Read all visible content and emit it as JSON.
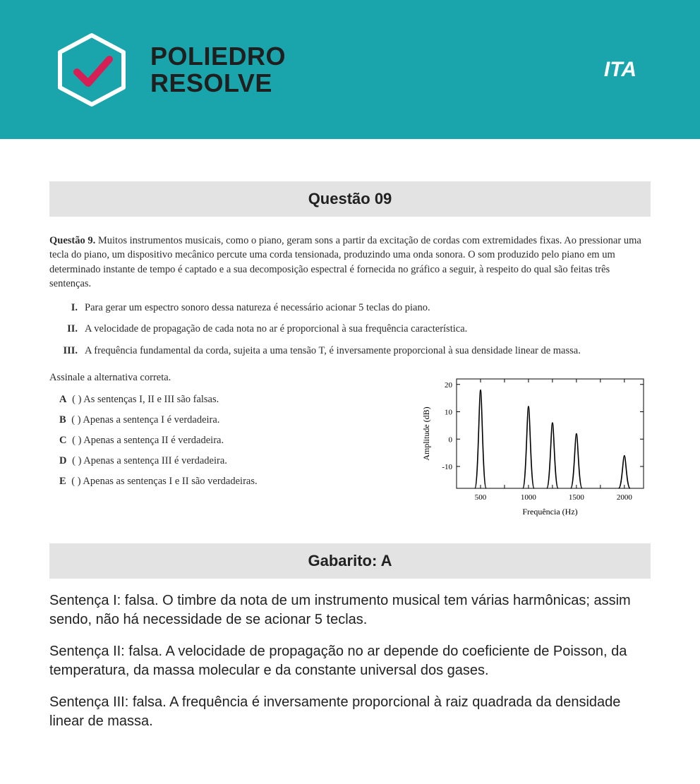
{
  "header": {
    "brand_line1": "POLIEDRO",
    "brand_line2": "RESOLVE",
    "exam": "ITA",
    "bg_color": "#1aa5ac",
    "check_color": "#d61f55",
    "hex_stroke": "#ffffff"
  },
  "question": {
    "title": "Questão 09",
    "label": "Questão 9.",
    "body": "Muitos instrumentos musicais, como o piano, geram sons a partir da excitação de cordas com extremidades fixas.  Ao pressionar uma tecla do piano, um dispositivo mecânico percute uma corda tensionada, produzindo uma onda sonora. O som produzido pelo piano em um determinado instante de tempo é captado e a sua decomposição espectral é fornecida no gráfico a seguir, à respeito do qual são feitas três sentenças.",
    "statements": [
      {
        "num": "I.",
        "text": "Para gerar um espectro sonoro dessa natureza é necessário acionar 5 teclas do piano."
      },
      {
        "num": "II.",
        "text": "A velocidade de propagação de cada nota no ar é proporcional à sua frequência característica."
      },
      {
        "num": "III.",
        "text": "A frequência fundamental da corda, sujeita a uma tensão T, é inversamente proporcional à sua densidade linear de massa."
      }
    ],
    "alt_prompt": "Assinale a alternativa correta.",
    "alternatives": [
      {
        "letter": "A",
        "text": "As sentenças I, II e III são falsas."
      },
      {
        "letter": "B",
        "text": "Apenas a sentença I é verdadeira."
      },
      {
        "letter": "C",
        "text": "Apenas a sentença II é verdadeira."
      },
      {
        "letter": "D",
        "text": "Apenas a sentença III é verdadeira."
      },
      {
        "letter": "E",
        "text": "Apenas as sentenças I e II são verdadeiras."
      }
    ]
  },
  "chart": {
    "type": "line-spectrum",
    "xlabel": "Frequência (Hz)",
    "ylabel": "Amplitude (dB)",
    "xlim": [
      250,
      2200
    ],
    "ylim": [
      -18,
      22
    ],
    "yticks": [
      -10,
      0,
      10,
      20
    ],
    "xticks": [
      500,
      1000,
      1500,
      2000
    ],
    "minor_xticks": [
      250,
      750,
      1250,
      1750
    ],
    "axis_color": "#000000",
    "line_color": "#000000",
    "background_color": "#ffffff",
    "label_fontsize": 12,
    "tick_fontsize": 11,
    "peaks": [
      {
        "freq": 500,
        "amp": 18
      },
      {
        "freq": 1000,
        "amp": 12
      },
      {
        "freq": 1250,
        "amp": 6
      },
      {
        "freq": 1500,
        "amp": 2
      },
      {
        "freq": 2000,
        "amp": -6
      }
    ],
    "peak_half_width_hz": 60
  },
  "answer": {
    "title": "Gabarito: A",
    "paragraphs": [
      "Sentença I: falsa. O timbre da nota de um instrumento musical tem várias harmônicas; assim sendo, não há necessidade de se acionar 5 teclas.",
      "Sentença II: falsa. A velocidade de propagação no ar depende do coeficiente de Poisson, da temperatura, da massa molecular e da constante universal dos gases.",
      "Sentença III: falsa. A frequência é inversamente proporcional à raiz quadrada da densidade linear de massa."
    ]
  }
}
